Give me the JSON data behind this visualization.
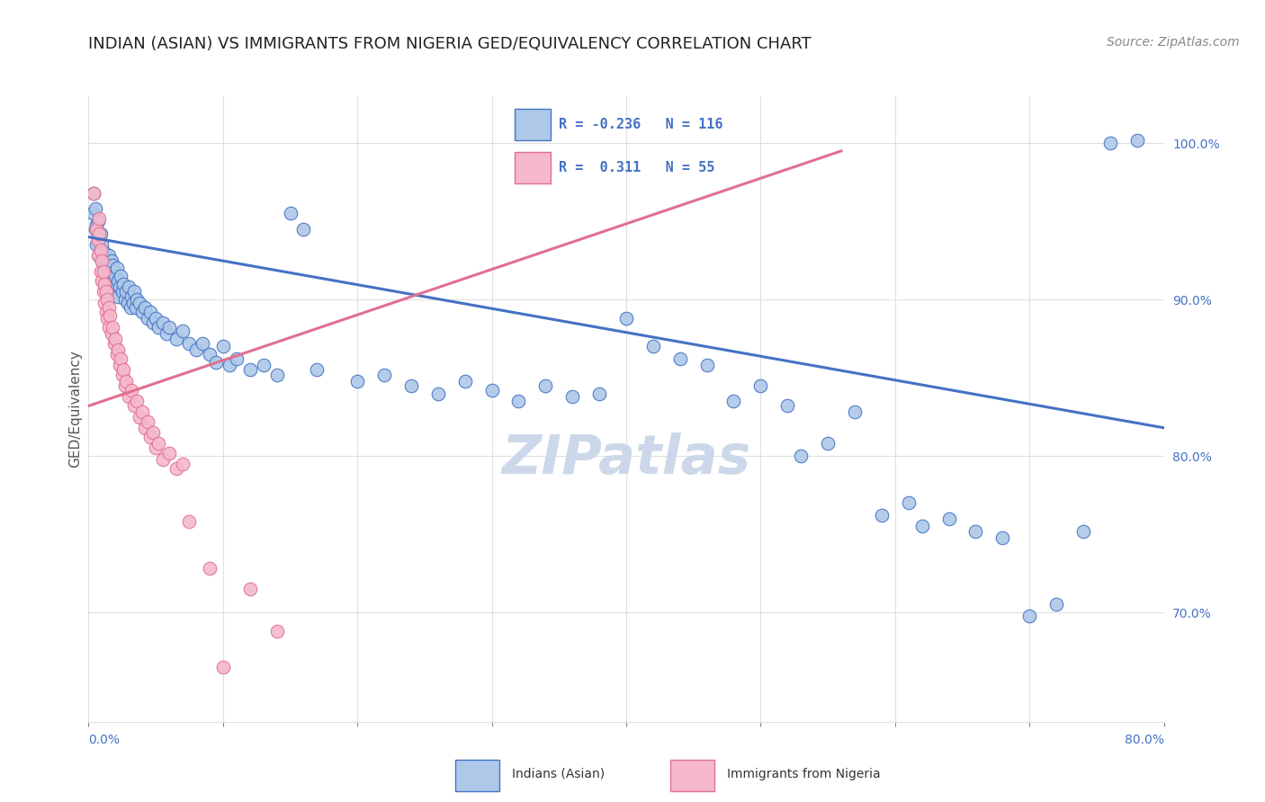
{
  "title": "INDIAN (ASIAN) VS IMMIGRANTS FROM NIGERIA GED/EQUIVALENCY CORRELATION CHART",
  "source": "Source: ZipAtlas.com",
  "ylabel": "GED/Equivalency",
  "legend_blue": {
    "R": "-0.236",
    "N": "116",
    "label": "Indians (Asian)"
  },
  "legend_pink": {
    "R": "0.311",
    "N": "55",
    "label": "Immigrants from Nigeria"
  },
  "watermark": "ZIPatlas",
  "blue_color": "#adc8e8",
  "pink_color": "#f5b8cc",
  "blue_line_color": "#4472c4",
  "pink_line_color": "#e07090",
  "blue_scatter": [
    [
      0.003,
      0.955
    ],
    [
      0.004,
      0.968
    ],
    [
      0.005,
      0.945
    ],
    [
      0.005,
      0.958
    ],
    [
      0.006,
      0.935
    ],
    [
      0.006,
      0.948
    ],
    [
      0.007,
      0.94
    ],
    [
      0.007,
      0.95
    ],
    [
      0.008,
      0.928
    ],
    [
      0.008,
      0.938
    ],
    [
      0.009,
      0.932
    ],
    [
      0.009,
      0.942
    ],
    [
      0.01,
      0.925
    ],
    [
      0.01,
      0.935
    ],
    [
      0.011,
      0.928
    ],
    [
      0.011,
      0.918
    ],
    [
      0.012,
      0.93
    ],
    [
      0.012,
      0.92
    ],
    [
      0.013,
      0.925
    ],
    [
      0.013,
      0.915
    ],
    [
      0.014,
      0.922
    ],
    [
      0.014,
      0.912
    ],
    [
      0.015,
      0.918
    ],
    [
      0.015,
      0.928
    ],
    [
      0.016,
      0.92
    ],
    [
      0.016,
      0.91
    ],
    [
      0.017,
      0.915
    ],
    [
      0.017,
      0.925
    ],
    [
      0.018,
      0.912
    ],
    [
      0.018,
      0.922
    ],
    [
      0.019,
      0.908
    ],
    [
      0.019,
      0.918
    ],
    [
      0.02,
      0.915
    ],
    [
      0.02,
      0.905
    ],
    [
      0.021,
      0.91
    ],
    [
      0.021,
      0.92
    ],
    [
      0.022,
      0.912
    ],
    [
      0.022,
      0.902
    ],
    [
      0.023,
      0.908
    ],
    [
      0.024,
      0.915
    ],
    [
      0.025,
      0.905
    ],
    [
      0.026,
      0.91
    ],
    [
      0.027,
      0.9
    ],
    [
      0.028,
      0.905
    ],
    [
      0.029,
      0.898
    ],
    [
      0.03,
      0.908
    ],
    [
      0.031,
      0.895
    ],
    [
      0.032,
      0.902
    ],
    [
      0.033,
      0.898
    ],
    [
      0.034,
      0.905
    ],
    [
      0.035,
      0.895
    ],
    [
      0.036,
      0.9
    ],
    [
      0.038,
      0.898
    ],
    [
      0.04,
      0.892
    ],
    [
      0.042,
      0.895
    ],
    [
      0.044,
      0.888
    ],
    [
      0.046,
      0.892
    ],
    [
      0.048,
      0.885
    ],
    [
      0.05,
      0.888
    ],
    [
      0.052,
      0.882
    ],
    [
      0.055,
      0.885
    ],
    [
      0.058,
      0.878
    ],
    [
      0.06,
      0.882
    ],
    [
      0.065,
      0.875
    ],
    [
      0.07,
      0.88
    ],
    [
      0.075,
      0.872
    ],
    [
      0.08,
      0.868
    ],
    [
      0.085,
      0.872
    ],
    [
      0.09,
      0.865
    ],
    [
      0.095,
      0.86
    ],
    [
      0.1,
      0.87
    ],
    [
      0.105,
      0.858
    ],
    [
      0.11,
      0.862
    ],
    [
      0.12,
      0.855
    ],
    [
      0.13,
      0.858
    ],
    [
      0.14,
      0.852
    ],
    [
      0.15,
      0.955
    ],
    [
      0.16,
      0.945
    ],
    [
      0.17,
      0.855
    ],
    [
      0.2,
      0.848
    ],
    [
      0.22,
      0.852
    ],
    [
      0.24,
      0.845
    ],
    [
      0.26,
      0.84
    ],
    [
      0.28,
      0.848
    ],
    [
      0.3,
      0.842
    ],
    [
      0.32,
      0.835
    ],
    [
      0.34,
      0.845
    ],
    [
      0.36,
      0.838
    ],
    [
      0.38,
      0.84
    ],
    [
      0.4,
      0.888
    ],
    [
      0.42,
      0.87
    ],
    [
      0.44,
      0.862
    ],
    [
      0.46,
      0.858
    ],
    [
      0.48,
      0.835
    ],
    [
      0.5,
      0.845
    ],
    [
      0.52,
      0.832
    ],
    [
      0.53,
      0.8
    ],
    [
      0.55,
      0.808
    ],
    [
      0.57,
      0.828
    ],
    [
      0.59,
      0.762
    ],
    [
      0.61,
      0.77
    ],
    [
      0.62,
      0.755
    ],
    [
      0.64,
      0.76
    ],
    [
      0.66,
      0.752
    ],
    [
      0.68,
      0.748
    ],
    [
      0.7,
      0.698
    ],
    [
      0.72,
      0.705
    ],
    [
      0.74,
      0.752
    ],
    [
      0.76,
      1.0
    ],
    [
      0.78,
      1.002
    ]
  ],
  "pink_scatter": [
    [
      0.004,
      0.968
    ],
    [
      0.006,
      0.945
    ],
    [
      0.007,
      0.938
    ],
    [
      0.007,
      0.928
    ],
    [
      0.008,
      0.952
    ],
    [
      0.008,
      0.942
    ],
    [
      0.009,
      0.932
    ],
    [
      0.009,
      0.918
    ],
    [
      0.01,
      0.925
    ],
    [
      0.01,
      0.912
    ],
    [
      0.011,
      0.918
    ],
    [
      0.011,
      0.905
    ],
    [
      0.012,
      0.91
    ],
    [
      0.012,
      0.898
    ],
    [
      0.013,
      0.905
    ],
    [
      0.013,
      0.892
    ],
    [
      0.014,
      0.9
    ],
    [
      0.014,
      0.888
    ],
    [
      0.015,
      0.895
    ],
    [
      0.015,
      0.882
    ],
    [
      0.016,
      0.89
    ],
    [
      0.017,
      0.878
    ],
    [
      0.018,
      0.882
    ],
    [
      0.019,
      0.872
    ],
    [
      0.02,
      0.875
    ],
    [
      0.021,
      0.865
    ],
    [
      0.022,
      0.868
    ],
    [
      0.023,
      0.858
    ],
    [
      0.024,
      0.862
    ],
    [
      0.025,
      0.852
    ],
    [
      0.026,
      0.855
    ],
    [
      0.027,
      0.845
    ],
    [
      0.028,
      0.848
    ],
    [
      0.03,
      0.838
    ],
    [
      0.032,
      0.842
    ],
    [
      0.034,
      0.832
    ],
    [
      0.036,
      0.835
    ],
    [
      0.038,
      0.825
    ],
    [
      0.04,
      0.828
    ],
    [
      0.042,
      0.818
    ],
    [
      0.044,
      0.822
    ],
    [
      0.046,
      0.812
    ],
    [
      0.048,
      0.815
    ],
    [
      0.05,
      0.805
    ],
    [
      0.052,
      0.808
    ],
    [
      0.055,
      0.798
    ],
    [
      0.06,
      0.802
    ],
    [
      0.065,
      0.792
    ],
    [
      0.07,
      0.795
    ],
    [
      0.075,
      0.758
    ],
    [
      0.09,
      0.728
    ],
    [
      0.1,
      0.665
    ],
    [
      0.12,
      0.715
    ],
    [
      0.14,
      0.688
    ]
  ],
  "xlim": [
    0.0,
    0.8
  ],
  "ylim": [
    0.63,
    1.03
  ],
  "yticks": [
    0.7,
    0.8,
    0.9,
    1.0
  ],
  "blue_line": [
    [
      0.0,
      0.94
    ],
    [
      0.8,
      0.818
    ]
  ],
  "pink_line": [
    [
      0.0,
      0.832
    ],
    [
      0.56,
      0.995
    ]
  ],
  "background_color": "#ffffff",
  "grid_color": "#e0e0e0",
  "title_fontsize": 13,
  "source_fontsize": 10,
  "axis_label_fontsize": 11,
  "tick_fontsize": 10,
  "legend_fontsize": 12,
  "watermark_color": "#ccd8ea",
  "right_tick_color": "#4472c4",
  "gray_tick_color": "#888888"
}
